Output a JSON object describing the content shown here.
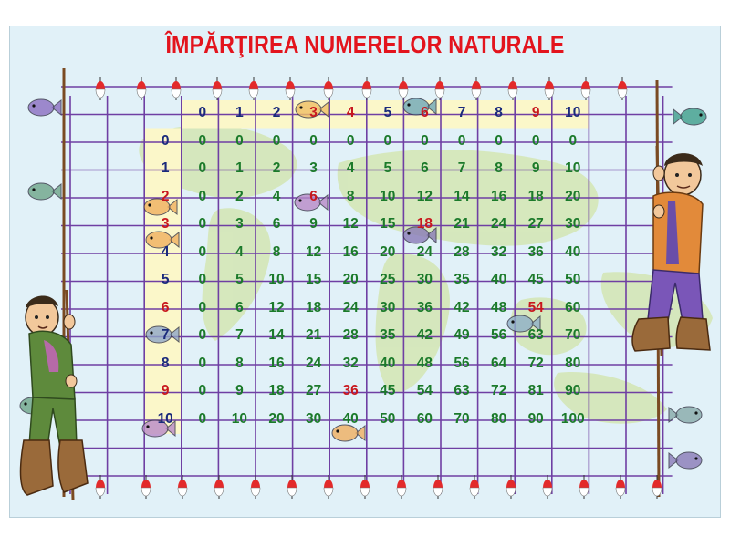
{
  "title": "ÎMPĂRŢIREA NUMERELOR NATURALE",
  "column_headers": [
    "0",
    "1",
    "2",
    "3",
    "4",
    "5",
    "6",
    "7",
    "8",
    "9",
    "10"
  ],
  "highlight_columns": [
    "3",
    "4",
    "6",
    "9"
  ],
  "rows": [
    {
      "label": "0",
      "values": [
        "0",
        "0",
        "0",
        "0",
        "0",
        "0",
        "0",
        "0",
        "0",
        "0",
        "0"
      ]
    },
    {
      "label": "1",
      "values": [
        "0",
        "1",
        "2",
        "3",
        "4",
        "5",
        "6",
        "7",
        "8",
        "9",
        "10"
      ]
    },
    {
      "label": "2",
      "values": [
        "0",
        "2",
        "4",
        "6",
        "8",
        "10",
        "12",
        "14",
        "16",
        "18",
        "20"
      ]
    },
    {
      "label": "3",
      "values": [
        "0",
        "3",
        "6",
        "9",
        "12",
        "15",
        "18",
        "21",
        "24",
        "27",
        "30"
      ]
    },
    {
      "label": "4",
      "values": [
        "0",
        "4",
        "8",
        "12",
        "16",
        "20",
        "24",
        "28",
        "32",
        "36",
        "40"
      ]
    },
    {
      "label": "5",
      "values": [
        "0",
        "5",
        "10",
        "15",
        "20",
        "25",
        "30",
        "35",
        "40",
        "45",
        "50"
      ]
    },
    {
      "label": "6",
      "values": [
        "0",
        "6",
        "12",
        "18",
        "24",
        "30",
        "36",
        "42",
        "48",
        "54",
        "60"
      ]
    },
    {
      "label": "7",
      "values": [
        "0",
        "7",
        "14",
        "21",
        "28",
        "35",
        "42",
        "49",
        "56",
        "63",
        "70"
      ]
    },
    {
      "label": "8",
      "values": [
        "0",
        "8",
        "16",
        "24",
        "32",
        "40",
        "48",
        "56",
        "64",
        "72",
        "80"
      ]
    },
    {
      "label": "9",
      "values": [
        "0",
        "9",
        "18",
        "27",
        "36",
        "45",
        "54",
        "63",
        "72",
        "81",
        "90"
      ]
    },
    {
      "label": "10",
      "values": [
        "0",
        "10",
        "20",
        "30",
        "40",
        "50",
        "60",
        "70",
        "80",
        "90",
        "100"
      ]
    }
  ],
  "highlight_row_labels": [
    "2",
    "3",
    "6",
    "9"
  ],
  "highlight_cells": [
    {
      "row": "2",
      "col": "3",
      "value": "6"
    },
    {
      "row": "3",
      "col": "6",
      "value": "18"
    },
    {
      "row": "6",
      "col": "9",
      "value": "54"
    },
    {
      "row": "9",
      "col": "4",
      "value": "36"
    }
  ],
  "colors": {
    "title": "#e3141d",
    "grid_lines": "#6f3fa3",
    "numbers": "#1b7a2a",
    "headers": "#1a2a7c",
    "highlight": "#c8181e",
    "header_background": "#fbf7c9",
    "poster_background": "#e1f1f8"
  },
  "decorations": [
    "fisherman-left-illustration",
    "fisherman-right-illustration",
    "fish-icon",
    "fishing-float-icon"
  ]
}
